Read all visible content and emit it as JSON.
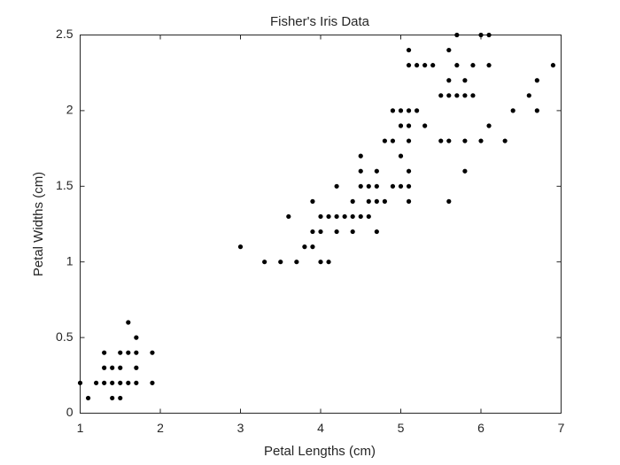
{
  "chart_data": {
    "type": "scatter",
    "title": "Fisher's Iris Data",
    "x_label": "Petal Lengths (cm)",
    "y_label": "Petal Widths (cm)",
    "color": "#000000",
    "x": [
      1.0,
      1.1,
      1.2,
      1.3,
      1.3,
      1.3,
      1.4,
      1.4,
      1.4,
      1.5,
      1.5,
      1.5,
      1.5,
      1.6,
      1.6,
      1.6,
      1.7,
      1.7,
      1.7,
      1.7,
      1.9,
      1.9,
      3.0,
      3.8,
      3.9,
      3.3,
      3.5,
      3.7,
      4.0,
      4.1,
      3.9,
      4.0,
      4.2,
      4.4,
      4.7,
      3.6,
      4.0,
      4.1,
      4.2,
      4.3,
      4.4,
      4.5,
      4.6,
      3.9,
      4.4,
      4.6,
      4.7,
      4.8,
      5.1,
      5.6,
      4.2,
      4.5,
      4.6,
      4.7,
      4.9,
      5.0,
      5.1,
      4.5,
      4.7,
      5.1,
      5.8,
      4.5,
      5.0,
      4.8,
      4.9,
      5.1,
      5.5,
      5.6,
      5.8,
      6.0,
      6.3,
      5.0,
      5.1,
      5.3,
      6.1,
      4.9,
      5.0,
      5.1,
      5.2,
      6.4,
      6.7,
      5.5,
      5.6,
      5.7,
      5.8,
      5.9,
      6.6,
      5.6,
      5.8,
      6.7,
      5.1,
      5.2,
      5.3,
      5.4,
      5.7,
      5.9,
      6.1,
      6.9,
      5.1,
      5.6,
      5.7,
      6.0,
      6.1
    ],
    "values": [
      0.2,
      0.1,
      0.2,
      0.2,
      0.3,
      0.4,
      0.1,
      0.2,
      0.3,
      0.1,
      0.2,
      0.3,
      0.4,
      0.2,
      0.4,
      0.6,
      0.2,
      0.3,
      0.4,
      0.5,
      0.2,
      0.4,
      1.1,
      1.1,
      1.1,
      1.0,
      1.0,
      1.0,
      1.0,
      1.0,
      1.2,
      1.2,
      1.2,
      1.2,
      1.2,
      1.3,
      1.3,
      1.3,
      1.3,
      1.3,
      1.3,
      1.3,
      1.3,
      1.4,
      1.4,
      1.4,
      1.4,
      1.4,
      1.4,
      1.4,
      1.5,
      1.5,
      1.5,
      1.5,
      1.5,
      1.5,
      1.5,
      1.6,
      1.6,
      1.6,
      1.6,
      1.7,
      1.7,
      1.8,
      1.8,
      1.8,
      1.8,
      1.8,
      1.8,
      1.8,
      1.8,
      1.9,
      1.9,
      1.9,
      1.9,
      2.0,
      2.0,
      2.0,
      2.0,
      2.0,
      2.0,
      2.1,
      2.1,
      2.1,
      2.1,
      2.1,
      2.1,
      2.2,
      2.2,
      2.2,
      2.3,
      2.3,
      2.3,
      2.3,
      2.3,
      2.3,
      2.3,
      2.3,
      2.4,
      2.4,
      2.5,
      2.5,
      2.5
    ],
    "xlim": [
      1,
      7
    ],
    "xticks": [
      1,
      2,
      3,
      4,
      5,
      6,
      7
    ],
    "ylim": [
      0,
      2.5
    ],
    "yticks": [
      0,
      0.5,
      1,
      1.5,
      2,
      2.5
    ],
    "grid": false
  }
}
